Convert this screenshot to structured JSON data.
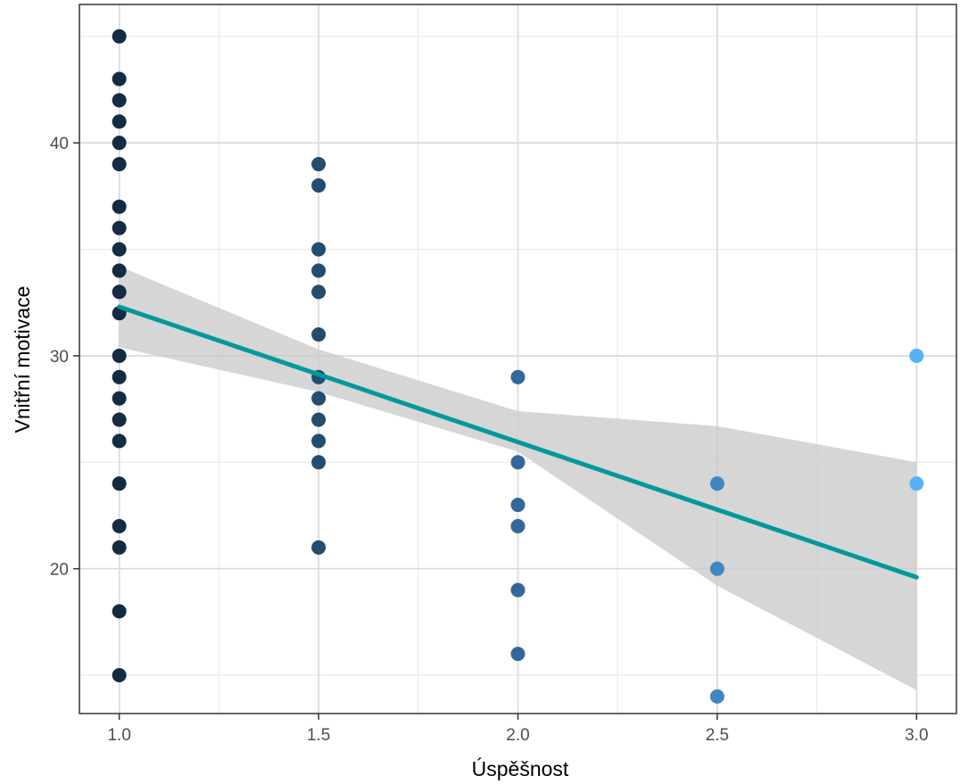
{
  "chart_data": {
    "type": "scatter",
    "xlabel": "Úspěšnost",
    "ylabel": "Vnitřní motivace",
    "xlim": [
      0.9,
      3.1
    ],
    "ylim": [
      13.2,
      46.5
    ],
    "grid": true,
    "x_ticks": [
      1.0,
      1.5,
      2.0,
      2.5,
      3.0
    ],
    "x_tick_labels": [
      "1.0",
      "1.5",
      "2.0",
      "2.5",
      "3.0"
    ],
    "y_ticks": [
      20,
      30,
      40
    ],
    "y_tick_labels": [
      "20",
      "30",
      "40"
    ],
    "points": [
      {
        "x": 1.0,
        "y": 45
      },
      {
        "x": 1.0,
        "y": 43
      },
      {
        "x": 1.0,
        "y": 42
      },
      {
        "x": 1.0,
        "y": 41
      },
      {
        "x": 1.0,
        "y": 40
      },
      {
        "x": 1.0,
        "y": 39
      },
      {
        "x": 1.0,
        "y": 37
      },
      {
        "x": 1.0,
        "y": 36
      },
      {
        "x": 1.0,
        "y": 35
      },
      {
        "x": 1.0,
        "y": 34
      },
      {
        "x": 1.0,
        "y": 33
      },
      {
        "x": 1.0,
        "y": 32
      },
      {
        "x": 1.0,
        "y": 30
      },
      {
        "x": 1.0,
        "y": 29
      },
      {
        "x": 1.0,
        "y": 28
      },
      {
        "x": 1.0,
        "y": 27
      },
      {
        "x": 1.0,
        "y": 26
      },
      {
        "x": 1.0,
        "y": 24
      },
      {
        "x": 1.0,
        "y": 22
      },
      {
        "x": 1.0,
        "y": 21
      },
      {
        "x": 1.0,
        "y": 18
      },
      {
        "x": 1.0,
        "y": 15
      },
      {
        "x": 1.5,
        "y": 39
      },
      {
        "x": 1.5,
        "y": 38
      },
      {
        "x": 1.5,
        "y": 35
      },
      {
        "x": 1.5,
        "y": 34
      },
      {
        "x": 1.5,
        "y": 33
      },
      {
        "x": 1.5,
        "y": 31
      },
      {
        "x": 1.5,
        "y": 29
      },
      {
        "x": 1.5,
        "y": 28
      },
      {
        "x": 1.5,
        "y": 27
      },
      {
        "x": 1.5,
        "y": 26
      },
      {
        "x": 1.5,
        "y": 25
      },
      {
        "x": 1.5,
        "y": 21
      },
      {
        "x": 2.0,
        "y": 29
      },
      {
        "x": 2.0,
        "y": 25
      },
      {
        "x": 2.0,
        "y": 23
      },
      {
        "x": 2.0,
        "y": 22
      },
      {
        "x": 2.0,
        "y": 19
      },
      {
        "x": 2.0,
        "y": 16
      },
      {
        "x": 2.5,
        "y": 24
      },
      {
        "x": 2.5,
        "y": 20
      },
      {
        "x": 2.5,
        "y": 14
      },
      {
        "x": 3.0,
        "y": 30
      },
      {
        "x": 3.0,
        "y": 24
      }
    ],
    "point_colors": {
      "1.0": "#132b43",
      "1.5": "#234d6f",
      "2.0": "#31689a",
      "2.5": "#3f86c2",
      "3.0": "#56b1f7"
    },
    "fit_line": {
      "x": [
        1.0,
        3.0
      ],
      "y": [
        32.3,
        19.6
      ],
      "color": "#00999b"
    },
    "confidence_band": {
      "x": [
        1.0,
        1.5,
        2.0,
        2.5,
        3.0
      ],
      "lower": [
        30.4,
        28.3,
        25.5,
        19.2,
        14.3
      ],
      "upper": [
        34.2,
        30.3,
        27.4,
        26.7,
        25.0
      ],
      "color": "#cccccc"
    }
  }
}
